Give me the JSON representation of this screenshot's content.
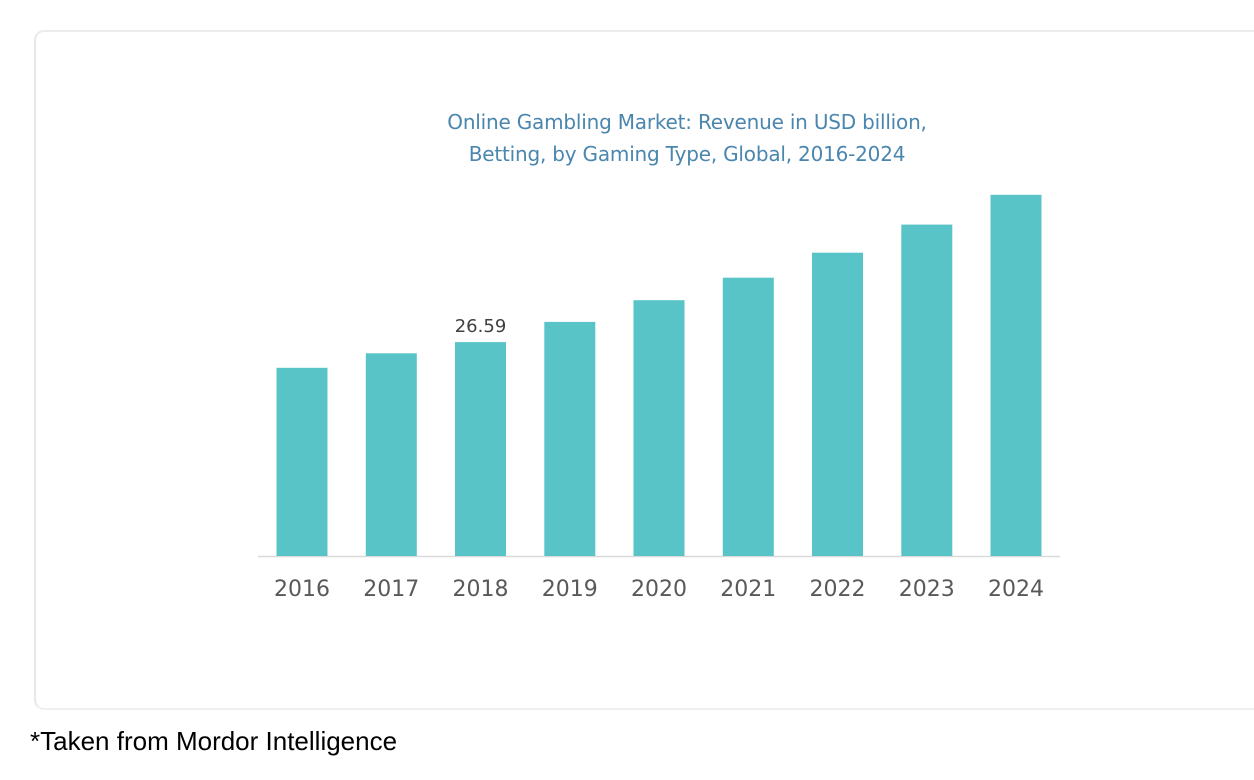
{
  "chart_data": {
    "type": "bar",
    "title_lines": [
      "Online Gambling Market: Revenue in USD billion,",
      "Betting, by Gaming Type, Global, 2016-2024"
    ],
    "categories": [
      "2016",
      "2017",
      "2018",
      "2019",
      "2020",
      "2021",
      "2022",
      "2023",
      "2024"
    ],
    "values": [
      23.4,
      25.2,
      26.59,
      29.1,
      31.8,
      34.6,
      37.7,
      41.2,
      44.9
    ],
    "data_labels": [
      {
        "category": "2018",
        "text": "26.59"
      }
    ],
    "bar_color": "#58c4c8",
    "title_color": "#4a86ad",
    "xlabel": "",
    "ylabel": "",
    "ylim": [
      0,
      45
    ],
    "grid": false,
    "legend": "none"
  },
  "caption": "*Taken from Mordor Intelligence"
}
